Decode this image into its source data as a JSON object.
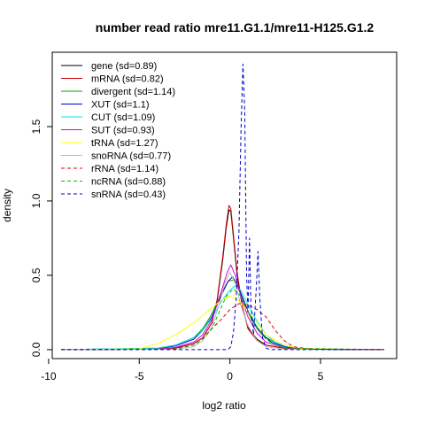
{
  "chart_data": {
    "type": "line",
    "title": "number read ratio mre11.G1.1/mre11-H125.G1.2",
    "xlabel": "log2 ratio",
    "ylabel": "density",
    "xlim": [
      -9.8,
      9.2
    ],
    "ylim": [
      -0.06,
      2.0
    ],
    "x_ticks": [
      -10,
      -5,
      0,
      5
    ],
    "x_tick_labels": [
      "-10",
      "-5",
      "0",
      "5"
    ],
    "y_ticks": [
      0.0,
      0.5,
      1.0,
      1.5
    ],
    "y_tick_labels": [
      "0.0",
      "0.5",
      "1.0",
      "1.5"
    ],
    "legend_position": "top-left",
    "series": [
      {
        "name": "gene (sd=0.89)",
        "color": "#000000",
        "dashed": false,
        "points": [
          [
            -9.3,
            0
          ],
          [
            -4,
            0.003
          ],
          [
            -3,
            0.01
          ],
          [
            -2,
            0.04
          ],
          [
            -1.5,
            0.08
          ],
          [
            -1,
            0.18
          ],
          [
            -0.7,
            0.33
          ],
          [
            -0.4,
            0.6
          ],
          [
            -0.2,
            0.82
          ],
          [
            -0.05,
            0.94
          ],
          [
            0.05,
            0.93
          ],
          [
            0.2,
            0.75
          ],
          [
            0.4,
            0.5
          ],
          [
            0.7,
            0.28
          ],
          [
            1,
            0.15
          ],
          [
            1.5,
            0.07
          ],
          [
            2,
            0.03
          ],
          [
            3,
            0.01
          ],
          [
            4,
            0.003
          ],
          [
            8.5,
            0
          ]
        ]
      },
      {
        "name": "mRNA (sd=0.82)",
        "color": "#cc0000",
        "dashed": false,
        "points": [
          [
            -9.3,
            0
          ],
          [
            -4,
            0.003
          ],
          [
            -3,
            0.01
          ],
          [
            -2,
            0.04
          ],
          [
            -1.5,
            0.08
          ],
          [
            -1,
            0.18
          ],
          [
            -0.7,
            0.34
          ],
          [
            -0.4,
            0.62
          ],
          [
            -0.2,
            0.84
          ],
          [
            -0.05,
            0.97
          ],
          [
            0.05,
            0.95
          ],
          [
            0.2,
            0.77
          ],
          [
            0.4,
            0.52
          ],
          [
            0.7,
            0.28
          ],
          [
            1,
            0.14
          ],
          [
            1.5,
            0.06
          ],
          [
            2,
            0.03
          ],
          [
            3,
            0.01
          ],
          [
            4,
            0.003
          ],
          [
            8.5,
            0
          ]
        ]
      },
      {
        "name": "divergent (sd=1.14)",
        "color": "#00aa00",
        "dashed": false,
        "points": [
          [
            -9.3,
            0
          ],
          [
            -4,
            0.01
          ],
          [
            -3,
            0.03
          ],
          [
            -2,
            0.08
          ],
          [
            -1.5,
            0.14
          ],
          [
            -1,
            0.24
          ],
          [
            -0.5,
            0.37
          ],
          [
            -0.1,
            0.46
          ],
          [
            0.2,
            0.47
          ],
          [
            0.5,
            0.4
          ],
          [
            1,
            0.26
          ],
          [
            1.5,
            0.15
          ],
          [
            2,
            0.08
          ],
          [
            3,
            0.02
          ],
          [
            4,
            0.005
          ],
          [
            8.5,
            0
          ]
        ]
      },
      {
        "name": "XUT (sd=1.1)",
        "color": "#0000cc",
        "dashed": false,
        "points": [
          [
            -9.3,
            0
          ],
          [
            -4,
            0.008
          ],
          [
            -3,
            0.025
          ],
          [
            -2,
            0.07
          ],
          [
            -1.5,
            0.13
          ],
          [
            -1,
            0.22
          ],
          [
            -0.5,
            0.36
          ],
          [
            -0.1,
            0.46
          ],
          [
            0.15,
            0.49
          ],
          [
            0.4,
            0.44
          ],
          [
            0.8,
            0.32
          ],
          [
            1.2,
            0.2
          ],
          [
            1.7,
            0.11
          ],
          [
            2.3,
            0.05
          ],
          [
            3,
            0.02
          ],
          [
            4,
            0.005
          ],
          [
            8.5,
            0
          ]
        ]
      },
      {
        "name": "CUT (sd=1.09)",
        "color": "#00e5e5",
        "dashed": false,
        "points": [
          [
            -9.3,
            0
          ],
          [
            -4,
            0.01
          ],
          [
            -3,
            0.03
          ],
          [
            -2,
            0.08
          ],
          [
            -1.5,
            0.13
          ],
          [
            -1,
            0.21
          ],
          [
            -0.5,
            0.32
          ],
          [
            0,
            0.4
          ],
          [
            0.3,
            0.43
          ],
          [
            0.6,
            0.4
          ],
          [
            1,
            0.3
          ],
          [
            1.5,
            0.19
          ],
          [
            2,
            0.1
          ],
          [
            2.5,
            0.05
          ],
          [
            3,
            0.025
          ],
          [
            4,
            0.006
          ],
          [
            8.5,
            0
          ]
        ]
      },
      {
        "name": "SUT (sd=0.93)",
        "color": "#dd00dd",
        "dashed": false,
        "points": [
          [
            -9.3,
            0
          ],
          [
            -4,
            0.004
          ],
          [
            -3,
            0.015
          ],
          [
            -2,
            0.05
          ],
          [
            -1.5,
            0.1
          ],
          [
            -1,
            0.2
          ],
          [
            -0.5,
            0.38
          ],
          [
            -0.15,
            0.52
          ],
          [
            0.05,
            0.57
          ],
          [
            0.3,
            0.5
          ],
          [
            0.6,
            0.36
          ],
          [
            1,
            0.22
          ],
          [
            1.5,
            0.11
          ],
          [
            2,
            0.05
          ],
          [
            3,
            0.012
          ],
          [
            4,
            0.003
          ],
          [
            8.5,
            0
          ]
        ]
      },
      {
        "name": "tRNA (sd=1.27)",
        "color": "#ffff00",
        "dashed": false,
        "points": [
          [
            -9.3,
            0
          ],
          [
            -5,
            0.005
          ],
          [
            -4,
            0.04
          ],
          [
            -3,
            0.1
          ],
          [
            -2,
            0.18
          ],
          [
            -1.5,
            0.23
          ],
          [
            -1,
            0.28
          ],
          [
            -0.5,
            0.33
          ],
          [
            0,
            0.36
          ],
          [
            0.5,
            0.33
          ],
          [
            1,
            0.26
          ],
          [
            1.5,
            0.18
          ],
          [
            2,
            0.1
          ],
          [
            3,
            0.03
          ],
          [
            4,
            0.006
          ],
          [
            8.5,
            0
          ]
        ]
      },
      {
        "name": "snoRNA (sd=0.77)",
        "color": "#bbbbbb",
        "dashed": false,
        "points": [
          [
            -9.3,
            0
          ],
          [
            -3,
            0.003
          ],
          [
            -2,
            0.02
          ],
          [
            -1.5,
            0.06
          ],
          [
            -1,
            0.15
          ],
          [
            -0.6,
            0.3
          ],
          [
            -0.3,
            0.44
          ],
          [
            0,
            0.52
          ],
          [
            0.3,
            0.45
          ],
          [
            0.6,
            0.3
          ],
          [
            1,
            0.16
          ],
          [
            1.5,
            0.06
          ],
          [
            2,
            0.02
          ],
          [
            3,
            0.003
          ],
          [
            8.5,
            0
          ]
        ]
      },
      {
        "name": "rRNA (sd=1.14)",
        "color": "#dd0000",
        "dashed": true,
        "points": [
          [
            -9.3,
            0
          ],
          [
            -3,
            0.005
          ],
          [
            -2,
            0.04
          ],
          [
            -1.5,
            0.08
          ],
          [
            -1,
            0.14
          ],
          [
            -0.5,
            0.2
          ],
          [
            0,
            0.27
          ],
          [
            0.5,
            0.31
          ],
          [
            1,
            0.3
          ],
          [
            1.5,
            0.27
          ],
          [
            2,
            0.22
          ],
          [
            2.5,
            0.13
          ],
          [
            3,
            0.06
          ],
          [
            3.5,
            0.02
          ],
          [
            4.5,
            0.003
          ],
          [
            8.5,
            0
          ]
        ]
      },
      {
        "name": "ncRNA (sd=0.88)",
        "color": "#00bb00",
        "dashed": true,
        "points": [
          [
            -9.3,
            0
          ],
          [
            -3,
            0.005
          ],
          [
            -2,
            0.03
          ],
          [
            -1.5,
            0.07
          ],
          [
            -1,
            0.14
          ],
          [
            -0.6,
            0.25
          ],
          [
            -0.2,
            0.36
          ],
          [
            0.2,
            0.41
          ],
          [
            0.6,
            0.36
          ],
          [
            1,
            0.25
          ],
          [
            1.5,
            0.14
          ],
          [
            2,
            0.07
          ],
          [
            2.5,
            0.03
          ],
          [
            3,
            0.01
          ],
          [
            8.5,
            0
          ]
        ]
      },
      {
        "name": "snRNA (sd=0.43)",
        "color": "#0000cc",
        "dashed": true,
        "points": [
          [
            -9.3,
            0
          ],
          [
            -0.1,
            0
          ],
          [
            0.05,
            0.02
          ],
          [
            0.2,
            0.12
          ],
          [
            0.35,
            0.35
          ],
          [
            0.5,
            0.8
          ],
          [
            0.62,
            1.5
          ],
          [
            0.72,
            1.92
          ],
          [
            0.82,
            1.6
          ],
          [
            0.92,
            0.5
          ],
          [
            1,
            0.25
          ],
          [
            1.08,
            0.75
          ],
          [
            1.16,
            0.3
          ],
          [
            1.3,
            0.1
          ],
          [
            1.45,
            0.4
          ],
          [
            1.55,
            0.66
          ],
          [
            1.65,
            0.35
          ],
          [
            1.8,
            0.08
          ],
          [
            2.0,
            0.01
          ],
          [
            2.2,
            0
          ],
          [
            8.5,
            0
          ]
        ]
      }
    ]
  }
}
